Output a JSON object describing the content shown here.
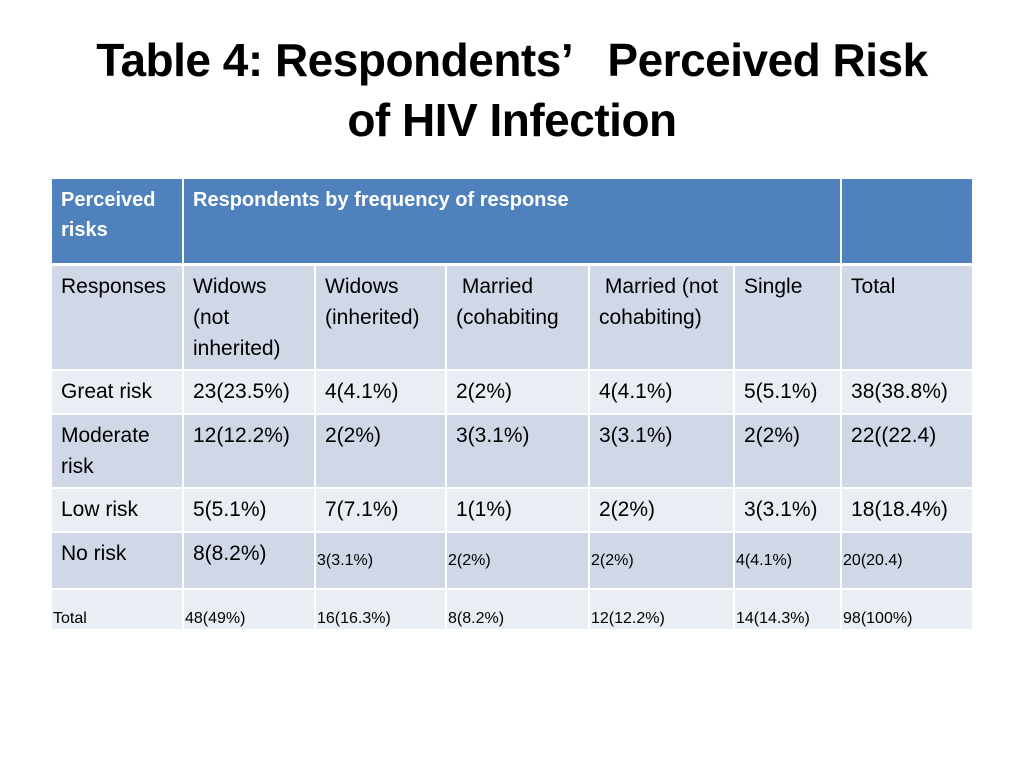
{
  "title": {
    "line1": "Table 4: Respondents’   Perceived Risk",
    "line2": "of HIV Infection"
  },
  "table": {
    "header": {
      "col1": "Perceived risks",
      "col2": "Respondents by frequency of response",
      "col3": ""
    },
    "columns": {
      "responses": "Responses",
      "widows_not_inherited": "Widows (not inherited)",
      "widows_inherited": "Widows (inherited)",
      "married_cohabiting": " Married (cohabiting",
      "married_not_cohabiting": " Married (not cohabiting)",
      "single": "Single",
      "total": "Total"
    },
    "rows": [
      {
        "label": "Great risk",
        "widows_not_inherited": "23(23.5%)",
        "widows_inherited": "4(4.1%)",
        "married_cohabiting": "2(2%)",
        "married_not_cohabiting": "4(4.1%)",
        "single": "5(5.1%)",
        "total": "38(38.8%)"
      },
      {
        "label": "Moderate risk",
        "widows_not_inherited": "12(12.2%)",
        "widows_inherited": "2(2%)",
        "married_cohabiting": "3(3.1%)",
        "married_not_cohabiting": "3(3.1%)",
        "single": "2(2%)",
        "total": "22((22.4)"
      },
      {
        "label": "Low risk",
        "widows_not_inherited": "5(5.1%)",
        "widows_inherited": "7(7.1%)",
        "married_cohabiting": "1(1%)",
        "married_not_cohabiting": "2(2%)",
        "single": "3(3.1%)",
        "total": "18(18.4%)"
      },
      {
        "label": "No risk",
        "widows_not_inherited": "8(8.2%)",
        "widows_inherited": "3(3.1%)",
        "married_cohabiting": "2(2%)",
        "married_not_cohabiting": "2(2%)",
        "single": "4(4.1%)",
        "total": "20(20.4)"
      }
    ],
    "total_row": {
      "label": "Total",
      "widows_not_inherited": "48(49%)",
      "widows_inherited": "16(16.3%)",
      "married_cohabiting": "8(8.2%)",
      "married_not_cohabiting": "12(12.2%)",
      "single": "14(14.3%)",
      "total": "98(100%)"
    }
  },
  "colors": {
    "header_bg": "#4f81bd",
    "row_odd_bg": "#d0d8e8",
    "row_even_bg": "#e9edf4"
  }
}
